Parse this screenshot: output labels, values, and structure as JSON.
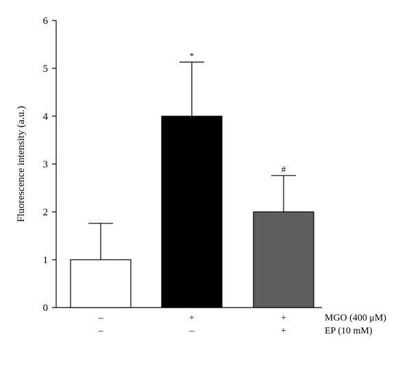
{
  "chart_data": {
    "type": "bar",
    "ylabel": "Fluorescence intensity (a.u.)",
    "ylim": [
      0,
      6
    ],
    "yticks": [
      "0",
      "1",
      "2",
      "3",
      "4",
      "5",
      "6"
    ],
    "bars": [
      {
        "value": 1.0,
        "error": 0.76,
        "fill": "#ffffff",
        "marker": ""
      },
      {
        "value": 4.0,
        "error": 1.13,
        "fill": "#000000",
        "marker": "*"
      },
      {
        "value": 2.0,
        "error": 0.76,
        "fill": "#5e5e5e",
        "marker": "#"
      }
    ],
    "treatment_rows": [
      {
        "label": "MGO (400 μM)",
        "signs": [
          "–",
          "+",
          "+"
        ]
      },
      {
        "label": "EP (10 mM)",
        "signs": [
          "–",
          "–",
          "+"
        ]
      }
    ]
  }
}
